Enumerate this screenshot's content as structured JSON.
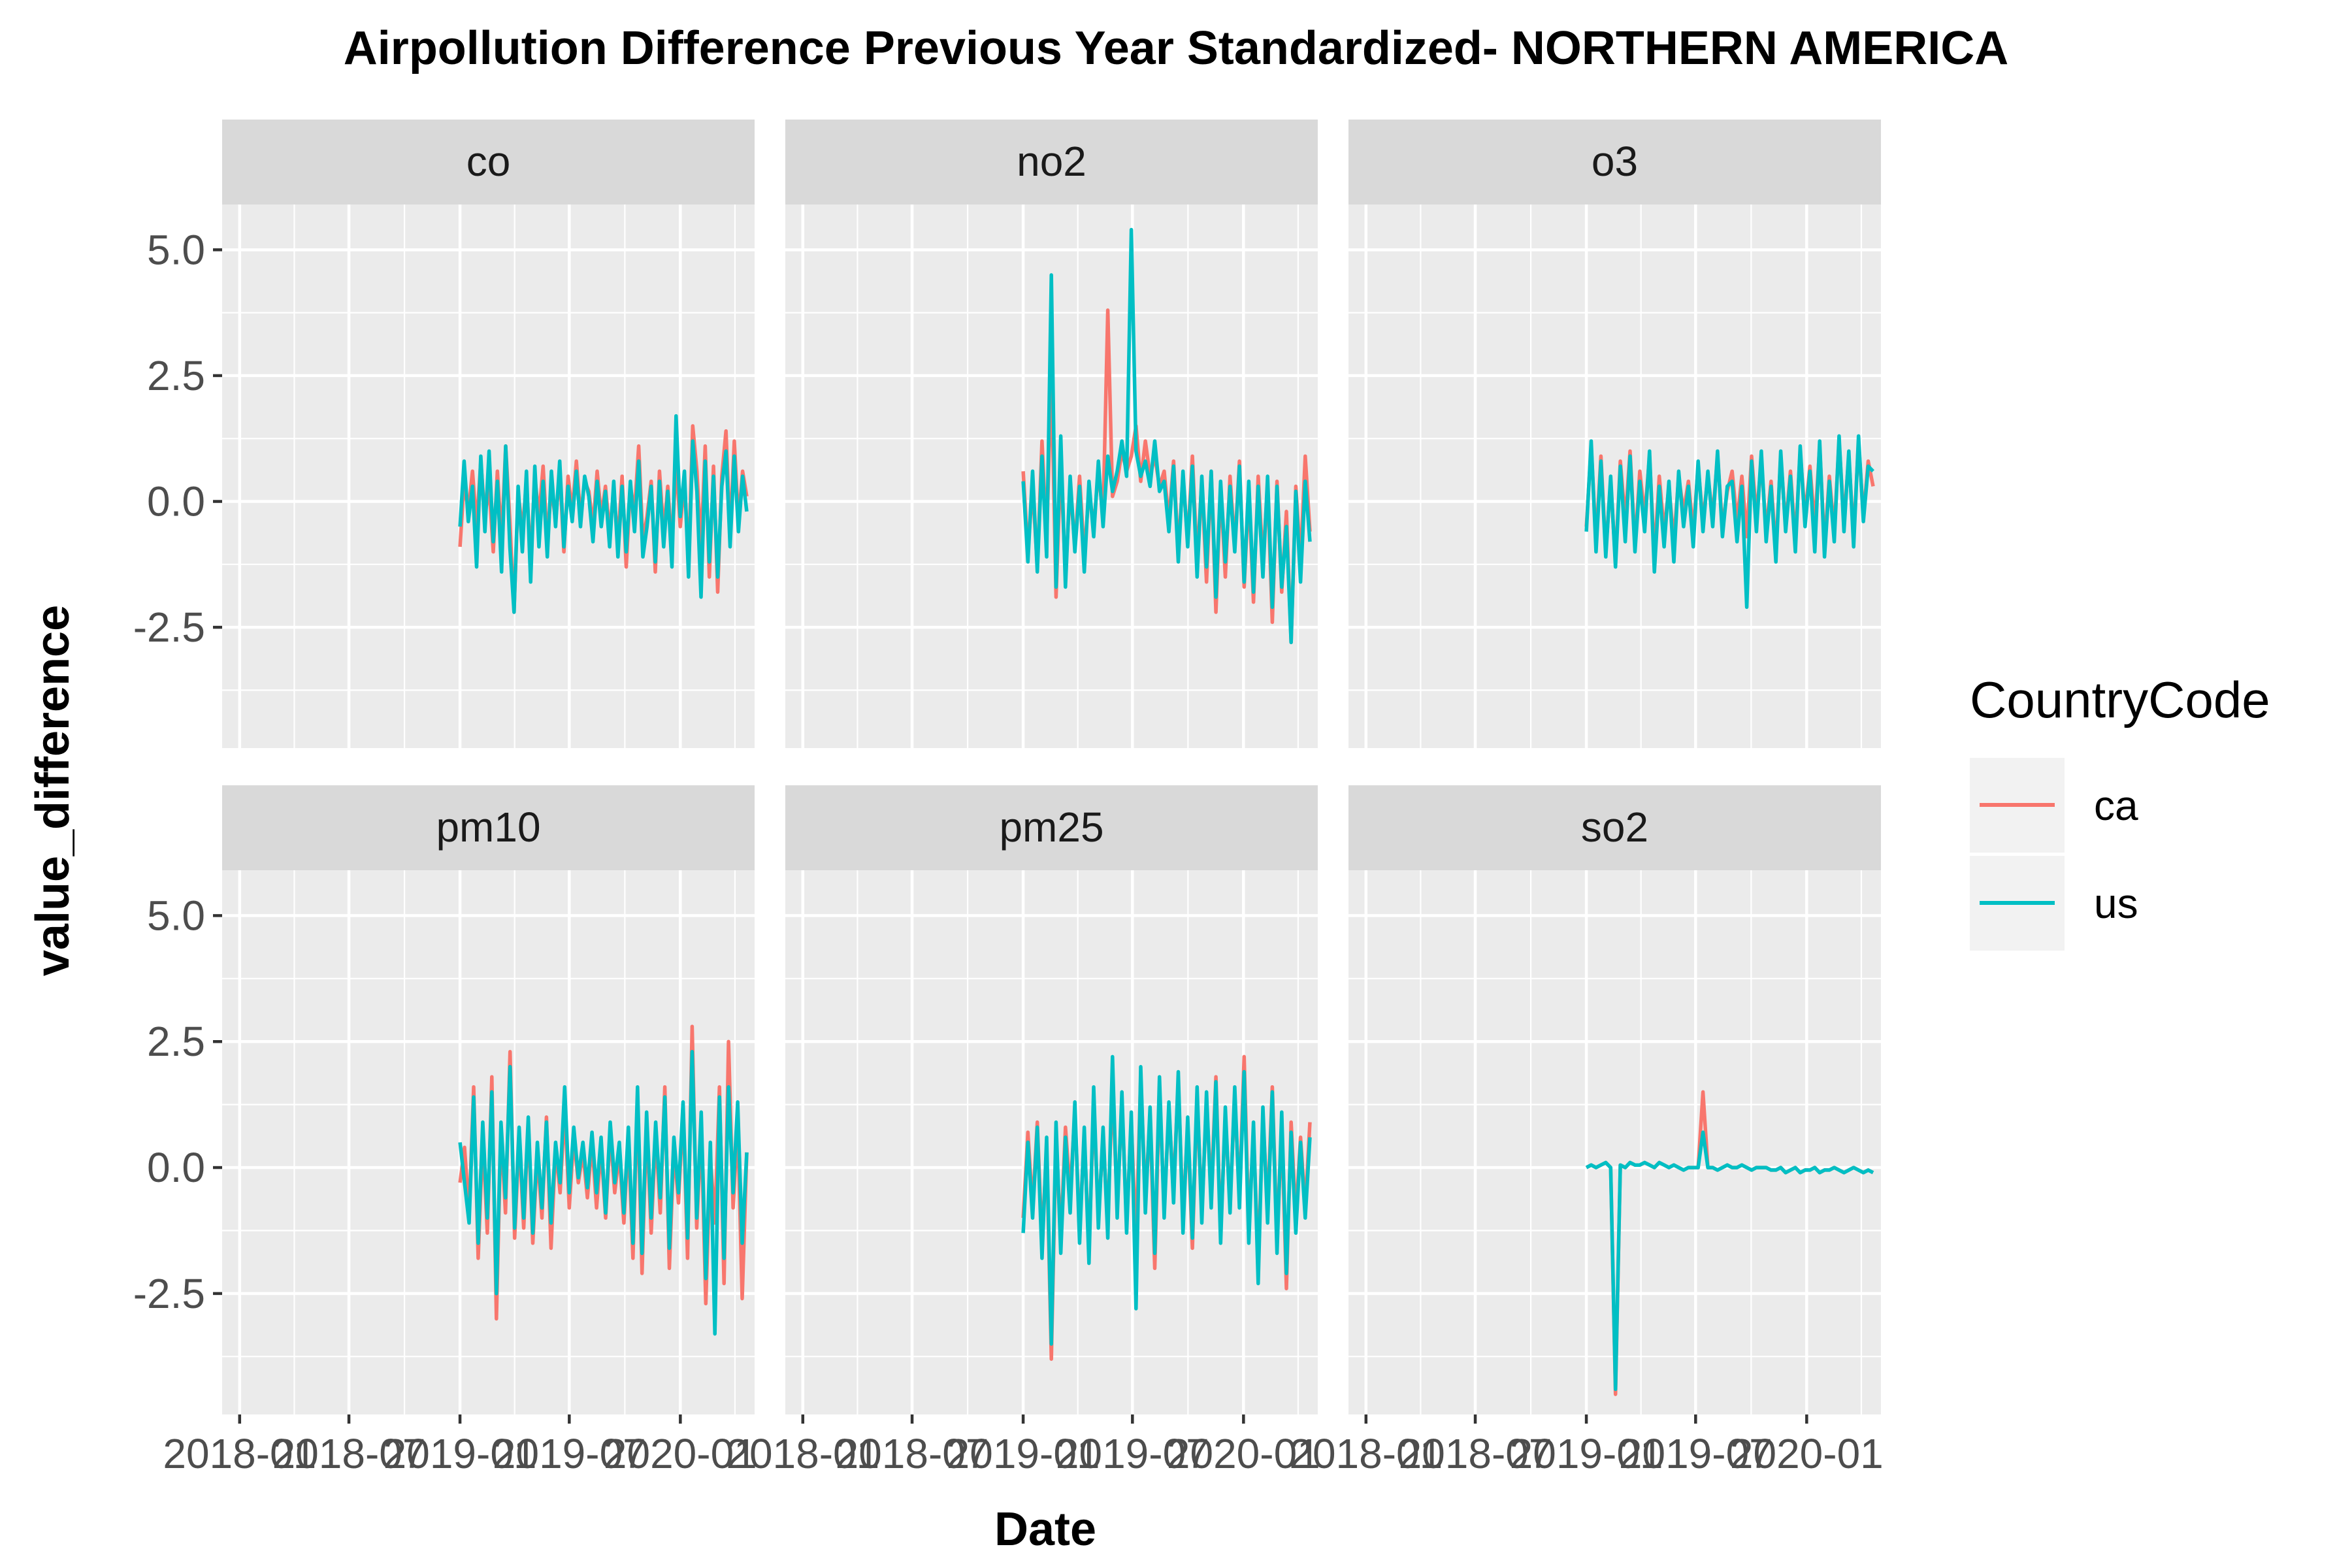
{
  "chart_data": {
    "type": "line",
    "title": "Airpollution Difference Previous Year Standardized- NORTHERN AMERICA",
    "xlabel": "Date",
    "ylabel": "value_difference",
    "legend": {
      "title": "CountryCode",
      "position": "right",
      "entries": [
        {
          "name": "ca",
          "color": "#F8766D"
        },
        {
          "name": "us",
          "color": "#00BFC4"
        }
      ]
    },
    "y_ticks": [
      {
        "v": 5.0,
        "label": "5.0"
      },
      {
        "v": 2.5,
        "label": "2.5"
      },
      {
        "v": 0.0,
        "label": "0.0"
      },
      {
        "v": -2.5,
        "label": "-2.5"
      }
    ],
    "ylim": [
      -4.9,
      5.9
    ],
    "x_ticks": [
      {
        "v": "2018-01",
        "label": "2018-01"
      },
      {
        "v": "2018-07",
        "label": "2018-07"
      },
      {
        "v": "2019-01",
        "label": "2019-01"
      },
      {
        "v": "2019-07",
        "label": "2019-07"
      },
      {
        "v": "2020-01",
        "label": "2020-01"
      }
    ],
    "xlim": [
      "2017-12-03",
      "2020-05-03"
    ],
    "grid": true,
    "facets": [
      {
        "name": "co",
        "series": [
          {
            "name": "ca",
            "x_start": "2019-01-01",
            "x_end": "2020-04-20",
            "values": [
              -0.9,
              0.4,
              -0.2,
              0.6,
              -0.5,
              0.8,
              -0.3,
              0.3,
              -1.0,
              0.6,
              -0.8,
              1.1,
              -0.4,
              -2.2,
              0.2,
              -0.6,
              0.4,
              -1.2,
              0.5,
              -0.3,
              0.7,
              -0.8,
              0.3,
              -0.4,
              0.6,
              -1.0,
              0.5,
              -0.2,
              0.8,
              -0.3,
              0.4,
              0.2,
              -0.5,
              0.6,
              -0.3,
              0.3,
              -0.6,
              0.2,
              -0.8,
              0.5,
              -1.3,
              0.3,
              -0.2,
              1.1,
              -0.8,
              -0.3,
              0.4,
              -1.4,
              0.6,
              -0.6,
              0.3,
              -0.9,
              0.8,
              -0.5,
              0.4,
              -1.2,
              1.5,
              0.6,
              -0.9,
              1.1,
              -1.5,
              0.7,
              -1.8,
              0.5,
              1.4,
              -0.7,
              1.2,
              -0.4,
              0.6,
              0.1
            ]
          },
          {
            "name": "us",
            "x_start": "2019-01-01",
            "x_end": "2020-04-20",
            "values": [
              -0.5,
              0.8,
              -0.4,
              0.3,
              -1.3,
              0.9,
              -0.6,
              1.0,
              -0.8,
              0.4,
              -1.4,
              1.1,
              -0.9,
              -2.2,
              0.3,
              -1.0,
              0.6,
              -1.6,
              0.7,
              -0.9,
              0.4,
              -1.1,
              0.6,
              -0.5,
              0.8,
              -0.9,
              0.3,
              -0.4,
              0.6,
              -0.5,
              0.5,
              0.1,
              -0.8,
              0.4,
              -0.5,
              0.2,
              -0.9,
              0.4,
              -1.1,
              0.3,
              -1.0,
              0.4,
              -0.6,
              0.8,
              -1.1,
              -0.5,
              0.3,
              -1.2,
              0.4,
              -0.9,
              0.2,
              -1.3,
              1.7,
              -0.3,
              0.6,
              -1.5,
              1.2,
              0.2,
              -1.9,
              0.8,
              -1.2,
              0.5,
              -1.5,
              0.3,
              1.0,
              -0.9,
              0.9,
              -0.6,
              0.5,
              -0.2
            ]
          }
        ]
      },
      {
        "name": "no2",
        "series": [
          {
            "name": "ca",
            "x_start": "2019-01-01",
            "x_end": "2020-04-20",
            "values": [
              0.6,
              -1.0,
              0.3,
              -1.3,
              1.2,
              -0.8,
              2.6,
              -1.9,
              0.8,
              -1.5,
              0.3,
              -0.9,
              0.5,
              -1.1,
              0.2,
              -0.5,
              0.6,
              -0.3,
              3.8,
              0.1,
              0.4,
              1.0,
              0.6,
              0.9,
              1.5,
              0.4,
              1.2,
              0.5,
              0.9,
              0.3,
              0.6,
              -0.4,
              0.8,
              -1.0,
              0.5,
              -0.8,
              0.9,
              -1.2,
              0.4,
              -1.6,
              0.6,
              -2.2,
              0.3,
              -1.5,
              0.5,
              -0.9,
              0.8,
              -1.7,
              0.2,
              -2.0,
              0.5,
              -1.2,
              0.3,
              -2.4,
              0.4,
              -1.8,
              -0.2,
              -2.8,
              0.3,
              -1.2,
              0.9,
              -0.6
            ]
          },
          {
            "name": "us",
            "x_start": "2019-01-01",
            "x_end": "2020-04-20",
            "values": [
              0.4,
              -1.2,
              0.6,
              -1.4,
              0.9,
              -1.1,
              4.5,
              -1.7,
              1.3,
              -1.7,
              0.5,
              -1.0,
              0.3,
              -1.4,
              0.4,
              -0.7,
              0.8,
              -0.5,
              0.9,
              0.2,
              0.6,
              1.2,
              0.5,
              5.4,
              1.0,
              0.5,
              0.8,
              0.3,
              1.2,
              0.2,
              0.4,
              -0.6,
              0.7,
              -1.2,
              0.6,
              -0.9,
              0.7,
              -1.5,
              0.5,
              -1.3,
              0.6,
              -1.9,
              0.4,
              -1.2,
              0.3,
              -1.0,
              0.7,
              -1.6,
              0.4,
              -1.8,
              0.3,
              -1.5,
              0.5,
              -2.1,
              0.3,
              -1.7,
              -0.5,
              -2.8,
              0.2,
              -1.6,
              0.4,
              -0.8
            ]
          }
        ]
      },
      {
        "name": "o3",
        "series": [
          {
            "name": "ca",
            "x_start": "2019-01-01",
            "x_end": "2020-04-20",
            "values": [
              -0.5,
              1.1,
              -0.8,
              0.9,
              -1.0,
              0.4,
              -1.2,
              0.8,
              -0.4,
              1.0,
              -0.9,
              0.6,
              -0.3,
              0.9,
              -1.1,
              0.5,
              -0.6,
              0.3,
              -0.8,
              0.5,
              -0.2,
              0.4,
              -0.6,
              0.7,
              -0.4,
              0.5,
              -0.3,
              0.9,
              -0.5,
              0.2,
              0.6,
              -0.4,
              0.5,
              -0.7,
              0.9,
              -0.3,
              0.8,
              -0.6,
              0.4,
              -1.0,
              0.9,
              -0.5,
              0.6,
              -0.8,
              1.0,
              -0.3,
              0.7,
              -0.5,
              1.1,
              -0.9,
              0.5,
              -0.6,
              1.2,
              -0.4,
              0.9,
              -0.7,
              1.2,
              -0.3,
              0.8,
              0.3
            ]
          },
          {
            "name": "us",
            "x_start": "2019-01-01",
            "x_end": "2020-04-20",
            "values": [
              -0.6,
              1.2,
              -1.0,
              0.8,
              -1.1,
              0.5,
              -1.3,
              0.7,
              -0.8,
              0.9,
              -1.0,
              0.4,
              -0.6,
              1.0,
              -1.4,
              0.3,
              -0.9,
              0.4,
              -1.2,
              0.6,
              -0.5,
              0.3,
              -0.9,
              0.8,
              -0.6,
              0.6,
              -0.5,
              1.0,
              -0.7,
              0.3,
              0.4,
              -0.8,
              0.3,
              -2.1,
              0.8,
              -0.6,
              1.0,
              -0.8,
              0.3,
              -1.2,
              1.0,
              -0.6,
              0.5,
              -1.0,
              1.1,
              -0.5,
              0.6,
              -1.0,
              1.2,
              -1.1,
              0.4,
              -0.8,
              1.3,
              -0.6,
              1.0,
              -0.9,
              1.3,
              -0.4,
              0.7,
              0.6
            ]
          }
        ]
      },
      {
        "name": "pm10",
        "series": [
          {
            "name": "ca",
            "x_start": "2019-01-01",
            "x_end": "2020-04-20",
            "values": [
              -0.3,
              0.4,
              -0.9,
              1.6,
              -1.8,
              0.6,
              -1.3,
              1.8,
              -3.0,
              0.8,
              -0.9,
              2.3,
              -1.4,
              0.6,
              -1.2,
              0.9,
              -1.5,
              0.3,
              -1.0,
              1.0,
              -1.6,
              0.4,
              -0.5,
              1.2,
              -0.8,
              0.6,
              -0.3,
              0.3,
              -0.6,
              0.5,
              -0.8,
              0.4,
              -1.0,
              0.7,
              -0.5,
              0.3,
              -1.1,
              0.6,
              -1.8,
              1.4,
              -2.1,
              0.9,
              -1.3,
              0.7,
              -0.9,
              1.6,
              -2.0,
              0.4,
              -0.7,
              1.2,
              -1.8,
              2.8,
              -1.2,
              0.8,
              -2.7,
              0.2,
              -1.1,
              1.6,
              -2.3,
              2.5,
              -0.8,
              0.9,
              -2.6,
              0.3
            ]
          },
          {
            "name": "us",
            "x_start": "2019-01-01",
            "x_end": "2020-04-20",
            "values": [
              0.5,
              -0.3,
              -1.1,
              1.4,
              -1.5,
              0.9,
              -1.0,
              1.5,
              -2.5,
              0.9,
              -0.6,
              2.0,
              -1.2,
              0.8,
              -1.0,
              1.0,
              -1.3,
              0.5,
              -0.8,
              0.9,
              -1.1,
              0.5,
              -0.3,
              1.6,
              -0.5,
              0.8,
              -0.2,
              0.5,
              -0.4,
              0.7,
              -0.5,
              0.6,
              -0.9,
              0.9,
              -0.3,
              0.5,
              -0.9,
              0.8,
              -1.5,
              1.6,
              -1.7,
              1.1,
              -1.0,
              0.9,
              -0.6,
              1.4,
              -1.6,
              0.6,
              -0.5,
              1.3,
              -1.4,
              2.3,
              -1.0,
              1.1,
              -2.2,
              0.5,
              -3.3,
              1.4,
              -1.8,
              1.6,
              -0.5,
              1.3,
              -1.5,
              0.3
            ]
          }
        ]
      },
      {
        "name": "pm25",
        "series": [
          {
            "name": "ca",
            "x_start": "2019-01-01",
            "x_end": "2020-04-20",
            "values": [
              -1.0,
              0.7,
              -0.8,
              0.9,
              -1.5,
              0.4,
              -3.8,
              0.6,
              -1.4,
              0.8,
              -0.5,
              1.1,
              -1.2,
              0.6,
              -1.6,
              1.2,
              -0.9,
              0.5,
              -1.0,
              1.6,
              -0.7,
              1.3,
              -1.1,
              0.9,
              -1.5,
              1.8,
              -0.6,
              1.0,
              -2.0,
              1.5,
              -0.8,
              1.1,
              -0.4,
              1.7,
              -1.0,
              0.8,
              -1.6,
              1.4,
              -0.9,
              1.3,
              -0.5,
              1.8,
              -1.3,
              1.0,
              -0.7,
              1.4,
              -0.6,
              2.2,
              -1.2,
              0.7,
              -1.9,
              1.0,
              -0.8,
              1.6,
              -1.4,
              0.8,
              -2.4,
              0.9,
              -1.0,
              0.6,
              -0.8,
              0.9
            ]
          },
          {
            "name": "us",
            "x_start": "2019-01-01",
            "x_end": "2020-04-20",
            "values": [
              -1.3,
              0.5,
              -1.0,
              0.8,
              -1.8,
              0.6,
              -3.5,
              0.9,
              -1.7,
              0.6,
              -0.9,
              1.3,
              -1.5,
              0.8,
              -1.9,
              1.6,
              -1.2,
              0.8,
              -1.4,
              2.2,
              -1.0,
              1.5,
              -1.3,
              1.1,
              -2.8,
              2.0,
              -0.9,
              1.2,
              -1.7,
              1.8,
              -1.0,
              1.3,
              -0.7,
              1.9,
              -1.3,
              1.0,
              -1.4,
              1.6,
              -1.1,
              1.5,
              -0.8,
              1.7,
              -1.5,
              1.2,
              -0.9,
              1.6,
              -0.8,
              1.9,
              -1.5,
              0.9,
              -2.3,
              1.2,
              -1.1,
              1.5,
              -1.7,
              1.1,
              -2.1,
              0.7,
              -1.3,
              0.5,
              -1.0,
              0.6
            ]
          }
        ]
      },
      {
        "name": "so2",
        "series": [
          {
            "name": "ca",
            "x_start": "2019-01-01",
            "x_end": "2020-04-20",
            "values": [
              0.0,
              0.05,
              0.0,
              0.05,
              0.1,
              0.0,
              -4.5,
              0.05,
              0.0,
              0.1,
              0.05,
              0.05,
              0.1,
              0.05,
              0.0,
              0.1,
              0.05,
              0.0,
              0.05,
              0.0,
              -0.05,
              0.0,
              0.0,
              0.0,
              1.5,
              0.0,
              0.0,
              -0.05,
              0.0,
              0.05,
              0.0,
              0.0,
              0.05,
              0.0,
              -0.05,
              0.0,
              0.0,
              0.0,
              -0.05,
              -0.05,
              0.0,
              -0.1,
              -0.05,
              0.0,
              -0.1,
              -0.05,
              -0.05,
              0.0,
              -0.1,
              -0.05,
              -0.05,
              0.0,
              -0.05,
              -0.1,
              -0.05,
              0.0,
              -0.05,
              -0.1,
              -0.05,
              -0.1
            ]
          },
          {
            "name": "us",
            "x_start": "2019-01-01",
            "x_end": "2020-04-20",
            "values": [
              0.0,
              0.05,
              0.0,
              0.05,
              0.1,
              0.0,
              -4.4,
              0.05,
              0.0,
              0.1,
              0.05,
              0.05,
              0.1,
              0.05,
              0.0,
              0.1,
              0.05,
              0.0,
              0.05,
              0.0,
              -0.05,
              0.0,
              0.0,
              0.0,
              0.7,
              0.0,
              0.0,
              -0.05,
              0.0,
              0.05,
              0.0,
              0.0,
              0.05,
              0.0,
              -0.05,
              0.0,
              0.0,
              0.0,
              -0.05,
              -0.05,
              0.0,
              -0.1,
              -0.05,
              0.0,
              -0.1,
              -0.05,
              -0.05,
              0.0,
              -0.1,
              -0.05,
              -0.05,
              0.0,
              -0.05,
              -0.1,
              -0.05,
              0.0,
              -0.05,
              -0.1,
              -0.05,
              -0.1
            ]
          }
        ]
      }
    ]
  }
}
